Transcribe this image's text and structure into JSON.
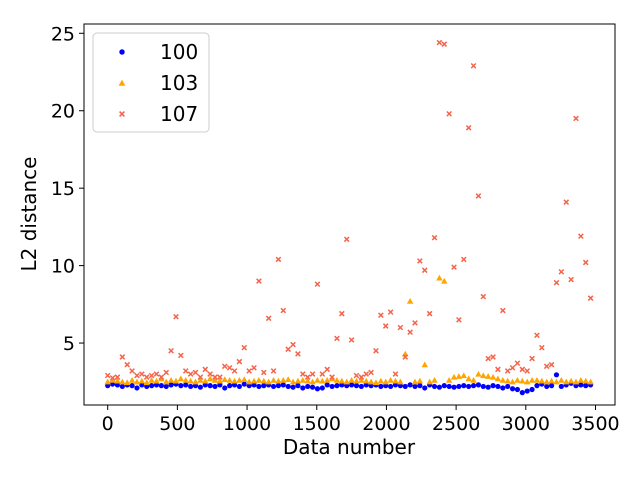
{
  "chart_data": {
    "type": "scatter",
    "xlabel": "Data number",
    "ylabel": "L2 distance",
    "xlim": [
      -170,
      3640
    ],
    "ylim": [
      1.0,
      25.6
    ],
    "xticks": [
      0,
      500,
      1000,
      1500,
      2000,
      2500,
      3000,
      3500
    ],
    "yticks": [
      5,
      10,
      15,
      20,
      25
    ],
    "grid": false,
    "legend_position": "top-left",
    "series": [
      {
        "name": "100",
        "color": "#0000ff",
        "marker": "circle",
        "x": [
          0,
          35,
          70,
          105,
          140,
          175,
          210,
          245,
          280,
          315,
          350,
          385,
          420,
          455,
          490,
          525,
          560,
          595,
          630,
          665,
          700,
          735,
          770,
          805,
          840,
          875,
          910,
          945,
          980,
          1015,
          1050,
          1085,
          1120,
          1155,
          1190,
          1225,
          1260,
          1295,
          1330,
          1365,
          1400,
          1435,
          1470,
          1505,
          1540,
          1575,
          1610,
          1645,
          1680,
          1715,
          1750,
          1785,
          1820,
          1855,
          1890,
          1925,
          1960,
          1995,
          2030,
          2065,
          2100,
          2135,
          2170,
          2205,
          2240,
          2275,
          2310,
          2345,
          2380,
          2415,
          2450,
          2485,
          2520,
          2555,
          2590,
          2625,
          2660,
          2695,
          2730,
          2765,
          2800,
          2835,
          2870,
          2905,
          2940,
          2975,
          3010,
          3045,
          3080,
          3115,
          3150,
          3185,
          3220,
          3255,
          3290,
          3325,
          3360,
          3395,
          3430,
          3465
        ],
        "y": [
          2.25,
          2.35,
          2.3,
          2.2,
          2.3,
          2.25,
          2.1,
          2.3,
          2.2,
          2.25,
          2.3,
          2.25,
          2.2,
          2.3,
          2.35,
          2.25,
          2.3,
          2.2,
          2.25,
          2.15,
          2.3,
          2.25,
          2.2,
          2.3,
          2.1,
          2.25,
          2.3,
          2.2,
          2.35,
          2.25,
          2.3,
          2.2,
          2.25,
          2.3,
          2.2,
          2.25,
          2.3,
          2.2,
          2.15,
          2.25,
          2.1,
          2.2,
          2.15,
          2.05,
          2.1,
          2.3,
          2.2,
          2.25,
          2.3,
          2.25,
          2.3,
          2.25,
          2.2,
          2.3,
          2.25,
          2.3,
          2.2,
          2.25,
          2.2,
          2.3,
          2.25,
          2.2,
          2.3,
          2.2,
          2.25,
          2.1,
          2.3,
          2.2,
          2.15,
          2.25,
          2.2,
          2.15,
          2.2,
          2.25,
          2.2,
          2.25,
          2.3,
          2.2,
          2.15,
          2.25,
          2.2,
          2.1,
          2.2,
          2.05,
          2.0,
          1.8,
          1.9,
          2.0,
          2.25,
          2.35,
          2.2,
          2.25,
          2.95,
          2.2,
          2.3,
          2.4,
          2.25,
          2.3,
          2.25,
          2.3
        ]
      },
      {
        "name": "103",
        "color": "#ffa500",
        "marker": "triangle",
        "x": [
          0,
          35,
          70,
          105,
          140,
          175,
          210,
          245,
          280,
          315,
          350,
          385,
          420,
          455,
          490,
          525,
          560,
          595,
          630,
          665,
          700,
          735,
          770,
          805,
          840,
          875,
          910,
          945,
          980,
          1015,
          1050,
          1085,
          1120,
          1155,
          1190,
          1225,
          1260,
          1295,
          1330,
          1365,
          1400,
          1435,
          1470,
          1505,
          1540,
          1575,
          1610,
          1645,
          1680,
          1715,
          1750,
          1785,
          1820,
          1855,
          1890,
          1925,
          1960,
          1995,
          2030,
          2065,
          2100,
          2135,
          2170,
          2205,
          2240,
          2275,
          2310,
          2345,
          2380,
          2415,
          2450,
          2485,
          2520,
          2555,
          2590,
          2625,
          2660,
          2695,
          2730,
          2765,
          2800,
          2835,
          2870,
          2905,
          2940,
          2975,
          3010,
          3045,
          3080,
          3115,
          3150,
          3185,
          3220,
          3255,
          3290,
          3325,
          3360,
          3395,
          3430,
          3465
        ],
        "y": [
          2.5,
          2.6,
          2.55,
          2.5,
          2.45,
          2.6,
          2.5,
          2.55,
          2.45,
          2.6,
          2.55,
          2.7,
          2.5,
          2.6,
          2.55,
          2.7,
          2.6,
          2.55,
          2.5,
          2.6,
          2.55,
          2.7,
          2.6,
          2.55,
          2.65,
          2.6,
          2.55,
          2.6,
          2.65,
          2.5,
          2.55,
          2.6,
          2.55,
          2.5,
          2.6,
          2.55,
          2.6,
          2.65,
          2.5,
          2.55,
          2.6,
          2.55,
          2.5,
          2.6,
          2.55,
          2.6,
          2.7,
          2.6,
          2.55,
          2.5,
          2.6,
          2.55,
          2.6,
          2.55,
          2.5,
          2.45,
          2.55,
          2.5,
          2.6,
          2.55,
          2.5,
          4.3,
          7.7,
          2.5,
          2.55,
          3.6,
          2.5,
          2.6,
          9.2,
          9.0,
          2.6,
          2.8,
          2.85,
          2.9,
          2.7,
          2.6,
          3.0,
          2.9,
          2.85,
          2.8,
          2.7,
          2.6,
          2.55,
          2.5,
          2.6,
          2.55,
          2.5,
          2.6,
          2.6,
          2.55,
          2.5,
          2.55,
          2.5,
          2.6,
          2.5,
          2.55,
          2.5,
          2.6,
          2.55,
          2.5
        ]
      },
      {
        "name": "107",
        "color": "#f4634a",
        "marker": "x",
        "x": [
          0,
          35,
          70,
          105,
          140,
          175,
          210,
          245,
          280,
          315,
          350,
          385,
          420,
          455,
          490,
          525,
          560,
          595,
          630,
          665,
          700,
          735,
          770,
          805,
          840,
          875,
          910,
          945,
          980,
          1015,
          1050,
          1085,
          1120,
          1155,
          1190,
          1225,
          1260,
          1295,
          1330,
          1365,
          1400,
          1435,
          1470,
          1505,
          1540,
          1575,
          1610,
          1645,
          1680,
          1715,
          1750,
          1785,
          1820,
          1855,
          1890,
          1925,
          1960,
          1995,
          2030,
          2065,
          2100,
          2135,
          2170,
          2205,
          2240,
          2275,
          2310,
          2345,
          2380,
          2415,
          2450,
          2485,
          2520,
          2555,
          2590,
          2625,
          2660,
          2695,
          2730,
          2765,
          2800,
          2835,
          2870,
          2905,
          2940,
          2975,
          3010,
          3045,
          3080,
          3115,
          3150,
          3185,
          3220,
          3255,
          3290,
          3325,
          3360,
          3395,
          3430,
          3465
        ],
        "y": [
          2.9,
          2.75,
          2.8,
          4.1,
          3.6,
          3.2,
          2.9,
          3.0,
          2.8,
          2.9,
          3.0,
          2.8,
          3.1,
          4.5,
          6.7,
          4.2,
          3.2,
          3.0,
          3.1,
          2.8,
          3.3,
          3.0,
          2.8,
          2.8,
          3.5,
          3.4,
          3.2,
          3.8,
          4.7,
          3.2,
          3.4,
          9.0,
          3.1,
          6.6,
          3.2,
          10.4,
          7.1,
          4.6,
          4.9,
          4.3,
          3.0,
          2.8,
          3.0,
          8.8,
          3.0,
          3.3,
          2.8,
          5.3,
          6.9,
          11.7,
          5.2,
          2.9,
          2.8,
          3.0,
          3.1,
          4.5,
          6.8,
          6.1,
          7.0,
          3.0,
          6.0,
          4.1,
          5.7,
          6.3,
          10.3,
          9.7,
          6.9,
          11.8,
          24.4,
          24.3,
          19.8,
          9.9,
          6.5,
          10.4,
          18.9,
          22.9,
          14.5,
          8.0,
          4.0,
          4.1,
          3.3,
          7.1,
          3.2,
          3.4,
          3.7,
          3.3,
          3.2,
          4.0,
          5.5,
          4.7,
          3.5,
          3.6,
          8.9,
          9.6,
          14.1,
          9.1,
          19.5,
          11.9,
          10.2,
          7.9
        ]
      }
    ]
  }
}
